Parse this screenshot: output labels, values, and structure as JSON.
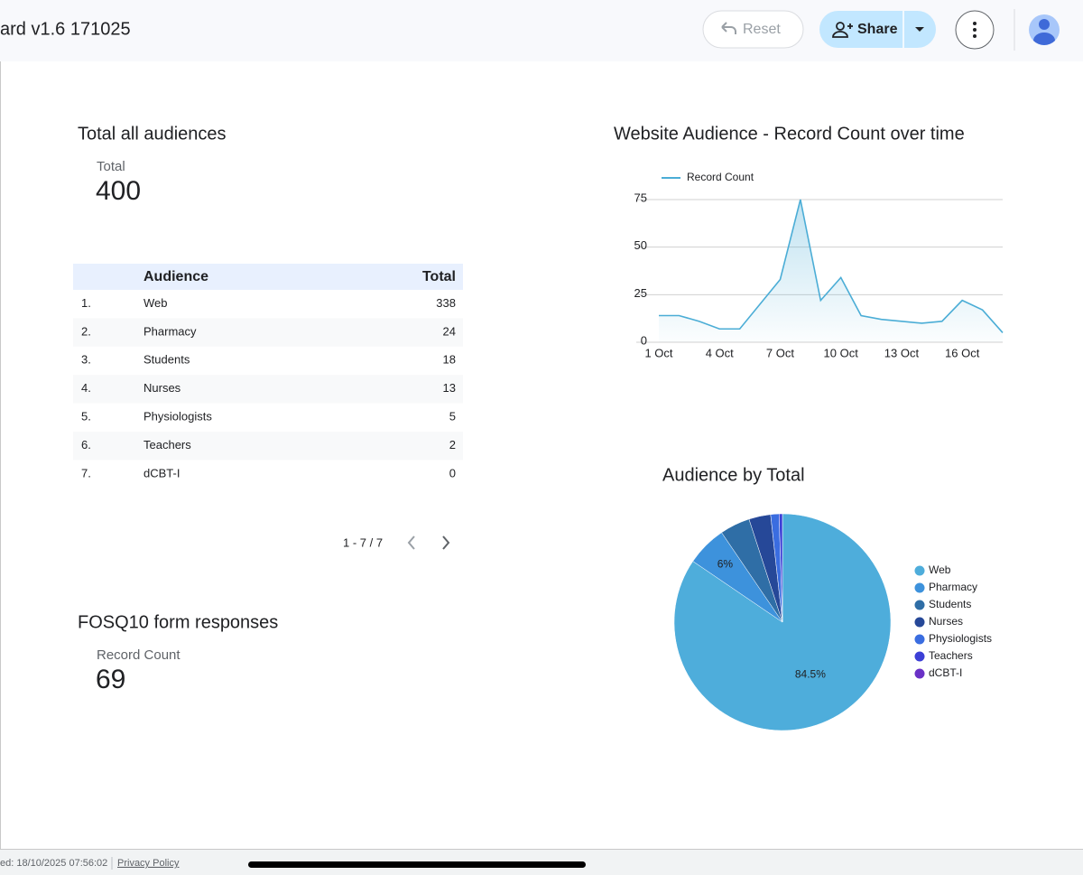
{
  "header": {
    "title": "ard v1.6 171025",
    "reset": "Reset",
    "share": "Share"
  },
  "scorecards": [
    {
      "title": "Total all audiences",
      "label": "Total",
      "value": 400
    },
    {
      "title": "FOSQ10 form responses",
      "label": "Record Count",
      "value": 69
    }
  ],
  "table": {
    "columns": [
      "Audience",
      "Total"
    ],
    "rows": [
      [
        "1.",
        "Web",
        338
      ],
      [
        "2.",
        "Pharmacy",
        24
      ],
      [
        "3.",
        "Students",
        18
      ],
      [
        "4.",
        "Nurses",
        13
      ],
      [
        "5.",
        "Physiologists",
        5
      ],
      [
        "6.",
        "Teachers",
        2
      ],
      [
        "7.",
        "dCBT-I",
        0
      ]
    ],
    "pagination": "1 - 7 / 7"
  },
  "chart_data": [
    {
      "type": "line",
      "title": "Website Audience - Record Count over time",
      "categories": [
        "1 Oct",
        null,
        null,
        "4 Oct",
        null,
        null,
        "7 Oct",
        null,
        null,
        "10 Oct",
        null,
        null,
        "13 Oct",
        null,
        null,
        "16 Oct",
        null,
        null
      ],
      "series": [
        {
          "name": "Record Count",
          "color": "#4badd6",
          "values": [
            14,
            14,
            11,
            7,
            7,
            20,
            33,
            75,
            22,
            34,
            14,
            12,
            11,
            10,
            11,
            22,
            17,
            5
          ]
        }
      ],
      "ylim": [
        0,
        75
      ],
      "yticks": [
        0,
        25,
        50,
        75
      ],
      "grid": true,
      "legend": "top-left"
    },
    {
      "type": "pie",
      "title": "Audience by Total",
      "categories": [
        "Web",
        "Pharmacy",
        "Students",
        "Nurses",
        "Physiologists",
        "Teachers",
        "dCBT-I"
      ],
      "values": [
        338,
        24,
        18,
        13,
        5,
        2,
        0
      ],
      "value_labels": [
        "84.5%",
        "6%",
        null,
        null,
        null,
        null,
        null
      ],
      "colors": [
        "#4eaddb",
        "#3d92dc",
        "#2f6ea6",
        "#264898",
        "#3a6de0",
        "#3c3fd6",
        "#6a31c6"
      ],
      "legend": "right"
    }
  ],
  "footer": {
    "updated": "ed: 18/10/2025 07:56:02",
    "privacy": "Privacy Policy"
  }
}
